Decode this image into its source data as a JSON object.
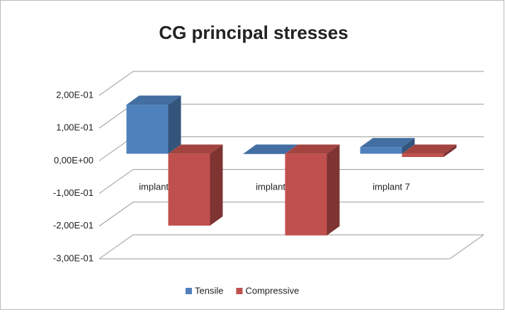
{
  "chart_data": {
    "type": "bar3d",
    "title": "CG principal stresses",
    "categories": [
      "implant 1",
      "implant 2",
      "implant 7"
    ],
    "series": [
      {
        "name": "Tensile",
        "color": "#4f81bd",
        "values": [
          0.15,
          0.0,
          0.02
        ]
      },
      {
        "name": "Compressive",
        "color": "#c0504d",
        "values": [
          -0.22,
          -0.25,
          -0.01
        ]
      }
    ],
    "ylim": [
      -0.3,
      0.2
    ],
    "yticks": [
      {
        "value": -0.3,
        "label": "-3,00E-01"
      },
      {
        "value": -0.2,
        "label": "-2,00E-01"
      },
      {
        "value": -0.1,
        "label": "-1,00E-01"
      },
      {
        "value": 0,
        "label": "0,00E+00"
      },
      {
        "value": 0.1,
        "label": "1,00E-01"
      },
      {
        "value": 0.2,
        "label": "2,00E-01"
      }
    ],
    "grid": true,
    "legend": "bottom"
  }
}
